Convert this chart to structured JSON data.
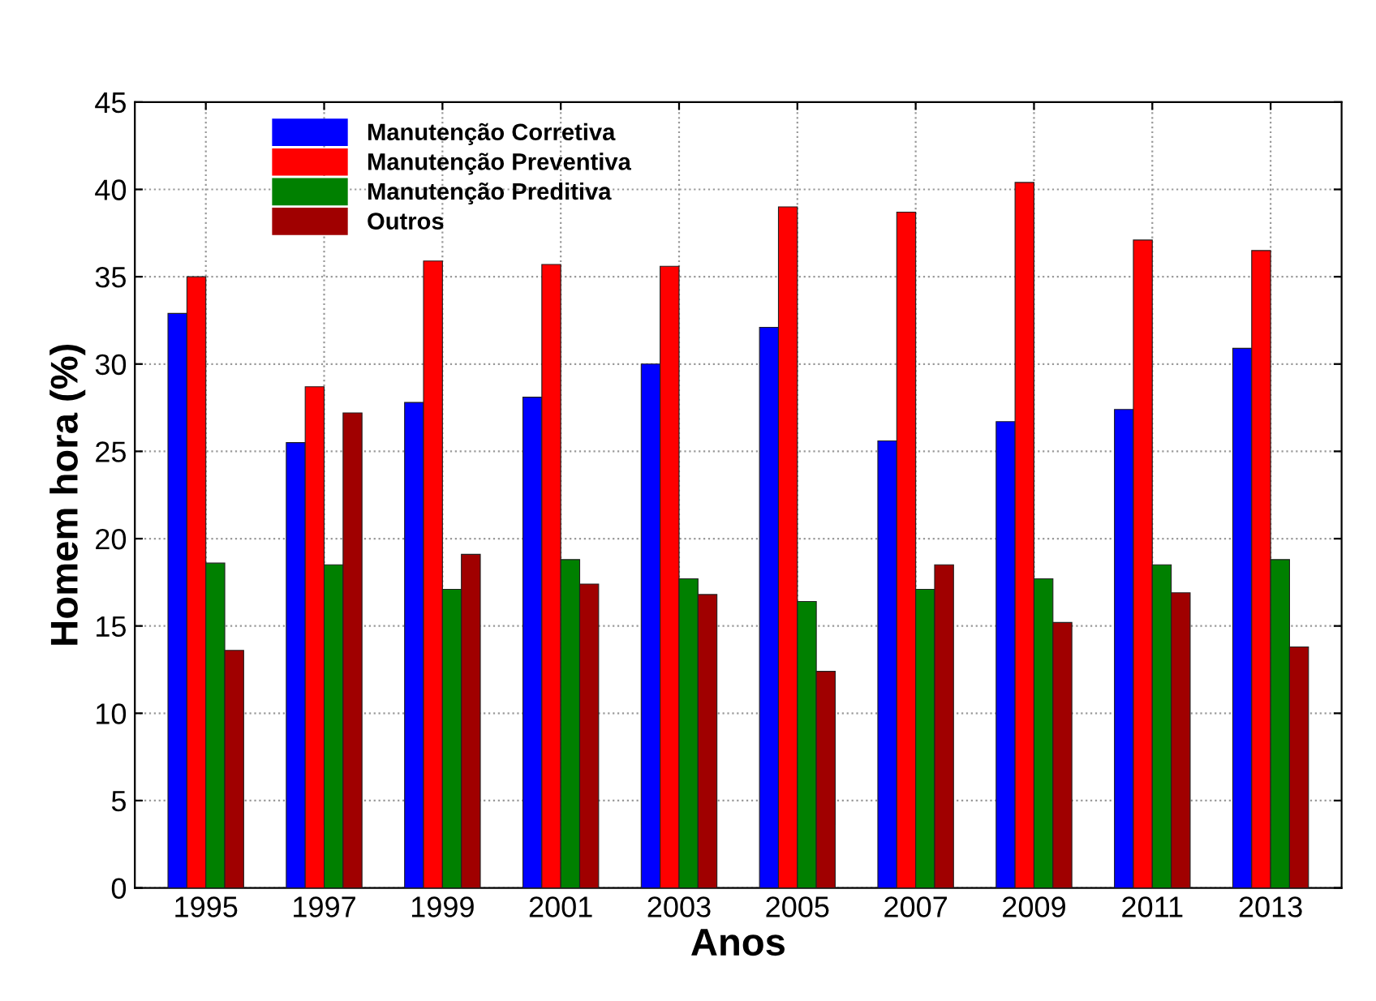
{
  "chart_data": {
    "type": "bar",
    "xlabel": "Anos",
    "ylabel": "Homem hora (%)",
    "categories": [
      "1995",
      "1997",
      "1999",
      "2001",
      "2003",
      "2005",
      "2007",
      "2009",
      "2011",
      "2013"
    ],
    "series": [
      {
        "name": "Manutenção Corretiva",
        "color": "#0000ff",
        "values": [
          32.9,
          25.5,
          27.8,
          28.1,
          30.0,
          32.1,
          25.6,
          26.7,
          27.4,
          30.9
        ]
      },
      {
        "name": "Manutenção Preventiva",
        "color": "#ff0000",
        "values": [
          35.0,
          28.7,
          35.9,
          35.7,
          35.6,
          39.0,
          38.7,
          40.4,
          37.1,
          36.5
        ]
      },
      {
        "name": "Manutenção Preditiva",
        "color": "#008000",
        "values": [
          18.6,
          18.5,
          17.1,
          18.8,
          17.7,
          16.4,
          17.1,
          17.7,
          18.5,
          18.8
        ]
      },
      {
        "name": "Outros",
        "color": "#a00000",
        "values": [
          13.6,
          27.2,
          19.1,
          17.4,
          16.8,
          12.4,
          18.5,
          15.2,
          16.9,
          13.8
        ]
      }
    ],
    "ylim": [
      0,
      45
    ],
    "yticks": [
      0,
      5,
      10,
      15,
      20,
      25,
      30,
      35,
      40,
      45
    ],
    "grid": true,
    "legend": "top left"
  }
}
